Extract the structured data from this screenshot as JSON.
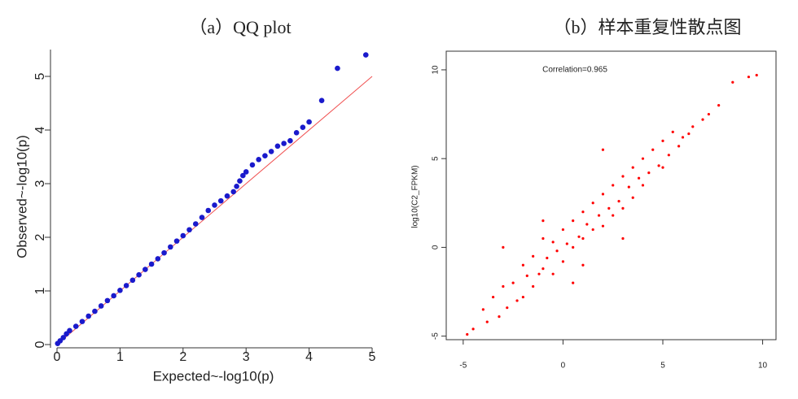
{
  "chart_data": [
    {
      "type": "scatter",
      "title": "（a）QQ plot",
      "xlabel": "Expected~-log10(p)",
      "ylabel": "Observed~-log10(p)",
      "x": [
        0.01,
        0.05,
        0.1,
        0.15,
        0.2,
        0.3,
        0.4,
        0.5,
        0.6,
        0.7,
        0.8,
        0.9,
        1.0,
        1.1,
        1.2,
        1.3,
        1.4,
        1.5,
        1.6,
        1.7,
        1.8,
        1.9,
        2.0,
        2.1,
        2.2,
        2.3,
        2.4,
        2.5,
        2.6,
        2.7,
        2.8,
        2.85,
        2.9,
        2.95,
        3.0,
        3.1,
        3.2,
        3.3,
        3.4,
        3.5,
        3.6,
        3.7,
        3.8,
        3.9,
        4.0,
        4.2,
        4.45,
        4.9
      ],
      "y": [
        0.02,
        0.07,
        0.13,
        0.2,
        0.26,
        0.34,
        0.43,
        0.53,
        0.62,
        0.72,
        0.82,
        0.91,
        1.01,
        1.1,
        1.2,
        1.3,
        1.4,
        1.5,
        1.6,
        1.71,
        1.82,
        1.93,
        2.03,
        2.14,
        2.25,
        2.37,
        2.5,
        2.6,
        2.68,
        2.77,
        2.85,
        2.95,
        3.05,
        3.15,
        3.22,
        3.35,
        3.45,
        3.52,
        3.6,
        3.7,
        3.75,
        3.8,
        3.95,
        4.05,
        4.15,
        4.55,
        5.15,
        5.4
      ],
      "color": "#1a1acc",
      "reference_line": {
        "x": [
          0,
          5
        ],
        "y": [
          0,
          5
        ],
        "color": "#f05050"
      },
      "xlim": [
        0,
        5
      ],
      "ylim": [
        0,
        5.5
      ],
      "xticks": [
        0,
        1,
        2,
        3,
        4,
        5
      ],
      "yticks": [
        0,
        1,
        2,
        3,
        4,
        5
      ]
    },
    {
      "type": "scatter",
      "title": "（b）样本重复性散点图",
      "annotation": "Correlation=0.965",
      "ylabel": "log10(C2_FPKM)",
      "x": [
        -4.8,
        -4.5,
        -4,
        -3.8,
        -3.5,
        -3.2,
        -3,
        -2.8,
        -2.5,
        -2.3,
        -2,
        -2,
        -1.8,
        -1.5,
        -1.5,
        -1.2,
        -1,
        -1,
        -0.8,
        -0.5,
        -0.5,
        -0.3,
        0,
        0,
        0.2,
        0.5,
        0.5,
        0.8,
        1,
        1,
        1.2,
        1.5,
        1.5,
        1.8,
        2,
        2,
        2.3,
        2.5,
        2.5,
        2.8,
        3,
        3,
        3.3,
        3.5,
        3.5,
        3.8,
        4,
        4,
        4.3,
        4.5,
        4.8,
        5,
        5,
        5.3,
        5.5,
        5.8,
        6,
        6.3,
        6.5,
        7,
        7.3,
        7.8,
        8.5,
        9.3,
        9.7,
        -3,
        -1,
        1,
        3,
        2,
        0.5
      ],
      "y": [
        -4.9,
        -4.6,
        -3.5,
        -4.2,
        -2.8,
        -3.9,
        -2.2,
        -3.4,
        -2,
        -3,
        -1,
        -2.8,
        -1.6,
        -0.5,
        -2.2,
        -1.5,
        0.5,
        -1.2,
        -0.6,
        -1.5,
        0.3,
        -0.2,
        1,
        -0.8,
        0.2,
        1.5,
        0,
        0.6,
        2,
        0.5,
        1.3,
        2.5,
        1,
        1.8,
        3,
        1.2,
        2.2,
        3.5,
        1.8,
        2.6,
        4,
        2.2,
        3.4,
        4.5,
        2.8,
        3.9,
        5,
        3.5,
        4.2,
        5.5,
        4.6,
        6,
        4.5,
        5.2,
        6.5,
        5.7,
        6.2,
        6.4,
        6.8,
        7.2,
        7.5,
        8,
        9.3,
        9.6,
        9.7,
        0,
        1.5,
        -1,
        0.5,
        5.5,
        -2
      ],
      "color": "#ff0000",
      "xlim": [
        -5.85,
        10.67
      ],
      "ylim": [
        -5.2,
        11.05
      ],
      "xticks": [
        -5,
        0,
        5,
        10
      ],
      "yticks": [
        -5,
        0,
        5,
        10
      ]
    }
  ]
}
